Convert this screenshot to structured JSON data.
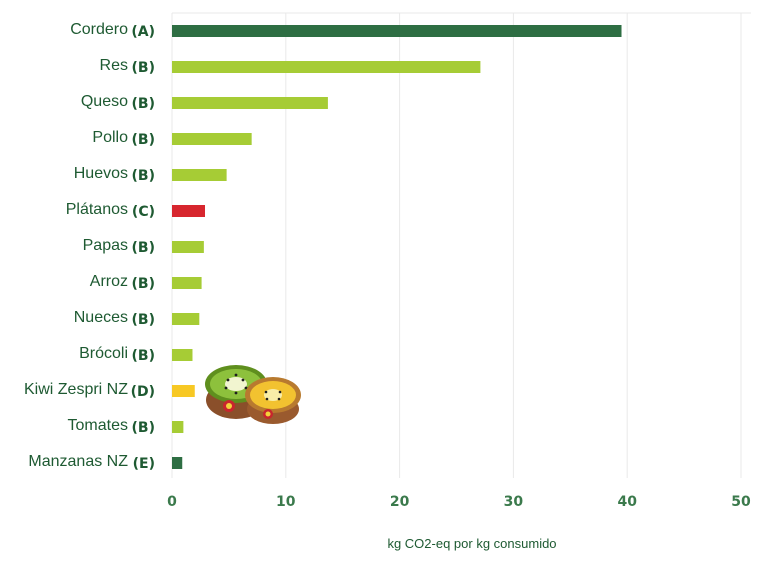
{
  "colors": {
    "A": "#2e6e43",
    "B": "#a6cc35",
    "C": "#d7262e",
    "D": "#f7c824",
    "E": "#2e6e43",
    "label": "#1e5a32",
    "tick": "#3b7a4c",
    "grid": "#e9e9e9"
  },
  "decorations": {
    "image_icon": "kiwi-halves-image"
  },
  "chart_data": {
    "type": "bar",
    "orientation": "horizontal",
    "categories": [
      "Cordero",
      "Res",
      "Queso",
      "Pollo",
      "Huevos",
      "Plátanos",
      "Papas",
      "Arroz",
      "Nueces",
      "Brócoli",
      "Kiwi Zespri NZ",
      "Tomates",
      "Manzanas NZ"
    ],
    "codes": [
      "(A)",
      "(B)",
      "(B)",
      "(B)",
      "(B)",
      "(C)",
      "(B)",
      "(B)",
      "(B)",
      "(B)",
      "(D)",
      "(B)",
      "(E)"
    ],
    "values": [
      39.5,
      27.1,
      13.7,
      7.0,
      4.8,
      2.9,
      2.8,
      2.6,
      2.4,
      1.8,
      2.0,
      1.0,
      0.9
    ],
    "xlabel": "kg CO2-eq por kg consumido",
    "xlim": [
      0,
      50
    ],
    "xticks": [
      0,
      10,
      20,
      30,
      40,
      50
    ],
    "grid": true,
    "legend": "none"
  }
}
